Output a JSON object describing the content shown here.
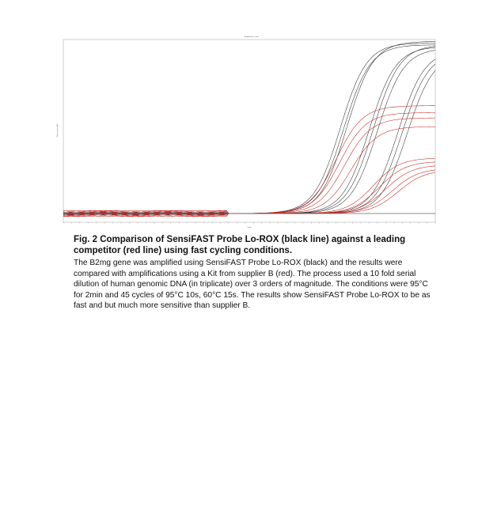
{
  "chart_data": {
    "type": "line",
    "title": "Amplification Curves",
    "xlabel": "Cycle",
    "ylabel": "Fluorescence (dR)",
    "xlim": [
      0,
      45
    ],
    "ylim": [
      -0.05,
      1
    ],
    "threshold": 0.0,
    "grid": false,
    "series": [
      {
        "color": "#333333",
        "curves": [
          {
            "ct": 29.5,
            "plateau": 0.98
          },
          {
            "ct": 29.9,
            "plateau": 0.97
          },
          {
            "ct": 30.3,
            "plateau": 0.99
          },
          {
            "ct": 33.0,
            "plateau": 0.96
          },
          {
            "ct": 33.5,
            "plateau": 0.97
          },
          {
            "ct": 34.0,
            "plateau": 0.95
          },
          {
            "ct": 36.5,
            "plateau": 0.94
          },
          {
            "ct": 37.0,
            "plateau": 0.93
          },
          {
            "ct": 37.6,
            "plateau": 0.92
          }
        ]
      },
      {
        "color": "#cc2222",
        "curves": [
          {
            "ct": 29.0,
            "plateau": 0.62
          },
          {
            "ct": 29.4,
            "plateau": 0.58
          },
          {
            "ct": 30.0,
            "plateau": 0.55
          },
          {
            "ct": 30.8,
            "plateau": 0.5
          },
          {
            "ct": 33.5,
            "plateau": 0.32
          },
          {
            "ct": 34.2,
            "plateau": 0.3
          },
          {
            "ct": 35.0,
            "plateau": 0.28
          },
          {
            "ct": 35.8,
            "plateau": 0.26
          },
          {
            "ct": 36.5,
            "plateau": 0.25
          }
        ]
      }
    ]
  },
  "caption": {
    "title": "Fig. 2 Comparison of SensiFAST Probe Lo-ROX (black line) against a leading competitor (red line) using fast cycling conditions.",
    "body": "The B2mg gene was amplified using SensiFAST Probe Lo-ROX (black) and the results were compared with amplifications using a Kit from supplier B (red). The process used a 10 fold serial dilution of human genomic DNA (in triplicate) over 3 orders of magnitude. The conditions were 95°C for 2min and 45 cycles of 95°C 10s, 60°C 15s. The results show SensiFAST Probe Lo-ROX to be as fast and but much more sensitive than supplier B."
  }
}
